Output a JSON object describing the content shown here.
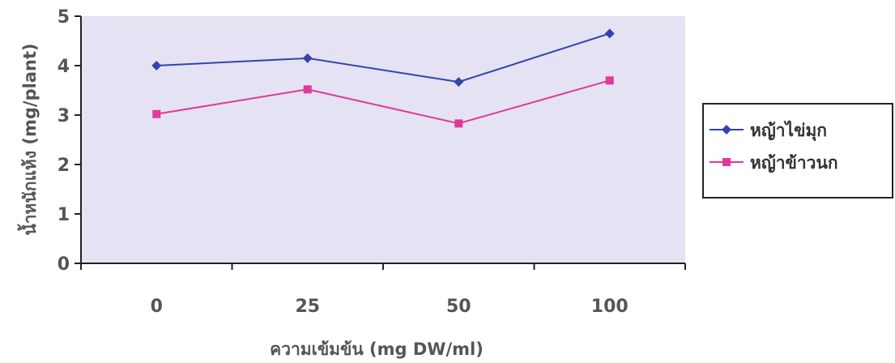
{
  "chart_data": {
    "type": "line",
    "categories": [
      "0",
      "25",
      "50",
      "100"
    ],
    "series": [
      {
        "name": "หญ้าไข่มุก",
        "values": [
          4.0,
          4.15,
          3.67,
          4.65
        ],
        "color": "#3344aa",
        "marker": "diamond"
      },
      {
        "name": "หญ้าข้าวนก",
        "values": [
          3.02,
          3.52,
          2.83,
          3.7
        ],
        "color": "#e0399a",
        "marker": "square"
      }
    ],
    "xlabel": "ความเข้มข้น (mg DW/ml)",
    "ylabel": "น้ำหนักแห้ง (mg/plant)",
    "ylim": [
      0,
      5
    ],
    "yticks": [
      "0",
      "1",
      "2",
      "3",
      "4",
      "5"
    ],
    "grid": false,
    "legend": "right",
    "plot_background": "#e4e2f3"
  }
}
